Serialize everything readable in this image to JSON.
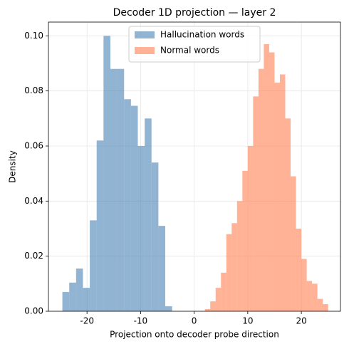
{
  "chart_data": {
    "type": "histogram",
    "title": "Decoder 1D projection — layer 2",
    "x_label": "Projection onto decoder probe direction",
    "y_label": "Density",
    "xlim": [
      -27.2,
      27.3
    ],
    "ylim": [
      0,
      0.105
    ],
    "xticks": [
      -20,
      -10,
      0,
      10,
      20
    ],
    "yticks": [
      {
        "value": 0,
        "label": "0.00"
      },
      {
        "value": 0.02,
        "label": "0.02"
      },
      {
        "value": 0.04,
        "label": "0.04"
      },
      {
        "value": 0.06,
        "label": "0.06"
      },
      {
        "value": 0.08,
        "label": "0.08"
      },
      {
        "value": 0.1,
        "label": "0.10"
      }
    ],
    "grid": true,
    "legend": "upper center",
    "series": [
      {
        "name": "Hallucination words",
        "color": "#4682b4",
        "bins": [
          -24.6,
          -23.32,
          -22.04,
          -20.76,
          -19.48,
          -18.2,
          -16.92,
          -15.64,
          -14.36,
          -13.08,
          -11.8,
          -10.52,
          -9.24,
          -7.96,
          -6.68,
          -5.4,
          -4.12
        ],
        "values": [
          0.007,
          0.0104,
          0.0155,
          0.0085,
          0.033,
          0.062,
          0.1,
          0.088,
          0.088,
          0.077,
          0.0746,
          0.06,
          0.07,
          0.054,
          0.031,
          0.0018
        ]
      },
      {
        "name": "Normal words",
        "color": "#ff7f50",
        "bins": [
          2,
          3,
          4,
          5,
          6,
          7,
          8,
          9,
          10,
          11,
          12,
          13,
          14,
          15,
          16,
          17,
          18,
          19,
          20,
          21,
          22,
          23,
          24,
          25
        ],
        "values": [
          0.0008,
          0.0036,
          0.0085,
          0.014,
          0.028,
          0.032,
          0.04,
          0.051,
          0.06,
          0.078,
          0.088,
          0.097,
          0.094,
          0.083,
          0.086,
          0.07,
          0.049,
          0.03,
          0.019,
          0.011,
          0.01,
          0.0045,
          0.0026
        ]
      }
    ]
  }
}
